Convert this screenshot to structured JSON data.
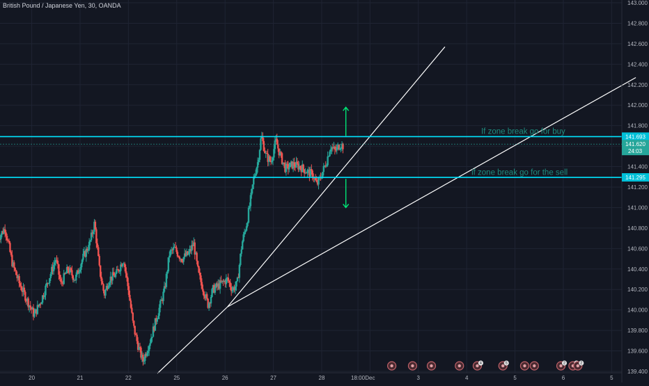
{
  "header": {
    "title": "British Pound / Japanese Yen, 30, OANDA"
  },
  "colors": {
    "background": "#131722",
    "grid": "#1f2433",
    "axis_text": "#b2b5be",
    "bull": "#26a69a",
    "bear": "#ef5350",
    "zone_line": "#00e5ff",
    "trendline": "#ffffff",
    "annotation_text": "#1e8c7e",
    "arrow": "#00e676",
    "price_tag": "#26a69a"
  },
  "chart_data": {
    "type": "candlestick",
    "symbol": "British Pound / Japanese Yen",
    "timeframe": "30",
    "source": "OANDA",
    "ylim": [
      139.4,
      143.0
    ],
    "y_ticks": [
      139.4,
      139.6,
      139.8,
      140.0,
      140.2,
      140.4,
      140.6,
      140.8,
      141.0,
      141.2,
      141.4,
      141.6,
      141.8,
      142.0,
      142.2,
      142.4,
      142.6,
      142.8,
      143.0
    ],
    "y_tick_labels": [
      "139.400",
      "139.600",
      "139.800",
      "140.000",
      "140.200",
      "140.400",
      "140.600",
      "140.800",
      "141.000",
      "141.200",
      "141.400",
      "141.600",
      "141.800",
      "142.000",
      "142.200",
      "142.400",
      "142.600",
      "142.800",
      "143.000"
    ],
    "x_ticks": [
      {
        "label": "20",
        "t": 20.0
      },
      {
        "label": "21",
        "t": 21.0
      },
      {
        "label": "22",
        "t": 22.0
      },
      {
        "label": "25",
        "t": 23.0
      },
      {
        "label": "26",
        "t": 24.0
      },
      {
        "label": "27",
        "t": 25.0
      },
      {
        "label": "28",
        "t": 26.0
      },
      {
        "label": "18:00",
        "t": 26.75
      },
      {
        "label": "Dec",
        "t": 27.0
      },
      {
        "label": "3",
        "t": 28.0
      },
      {
        "label": "4",
        "t": 29.0
      },
      {
        "label": "5",
        "t": 30.0
      },
      {
        "label": "6",
        "t": 31.0
      },
      {
        "label": "5",
        "t": 32.0
      }
    ],
    "path": [
      [
        19.3,
        140.7
      ],
      [
        19.45,
        140.8
      ],
      [
        19.6,
        140.45
      ],
      [
        19.75,
        140.25
      ],
      [
        19.9,
        140.1
      ],
      [
        20.05,
        139.95
      ],
      [
        20.2,
        140.1
      ],
      [
        20.35,
        140.3
      ],
      [
        20.5,
        140.5
      ],
      [
        20.6,
        140.25
      ],
      [
        20.75,
        140.4
      ],
      [
        20.9,
        140.3
      ],
      [
        21.05,
        140.5
      ],
      [
        21.2,
        140.65
      ],
      [
        21.3,
        140.85
      ],
      [
        21.4,
        140.4
      ],
      [
        21.5,
        140.15
      ],
      [
        21.6,
        140.3
      ],
      [
        21.75,
        140.35
      ],
      [
        21.9,
        140.5
      ],
      [
        22.0,
        140.2
      ],
      [
        22.1,
        139.85
      ],
      [
        22.2,
        139.65
      ],
      [
        22.3,
        139.5
      ],
      [
        22.45,
        139.7
      ],
      [
        22.6,
        139.95
      ],
      [
        22.75,
        140.2
      ],
      [
        22.85,
        140.55
      ],
      [
        22.95,
        140.6
      ],
      [
        23.1,
        140.5
      ],
      [
        23.25,
        140.55
      ],
      [
        23.35,
        140.65
      ],
      [
        23.45,
        140.35
      ],
      [
        23.55,
        140.2
      ],
      [
        23.65,
        140.05
      ],
      [
        23.75,
        140.2
      ],
      [
        23.9,
        140.25
      ],
      [
        24.05,
        140.3
      ],
      [
        24.15,
        140.2
      ],
      [
        24.25,
        140.25
      ],
      [
        24.35,
        140.65
      ],
      [
        24.45,
        140.85
      ],
      [
        24.52,
        141.05
      ],
      [
        24.6,
        141.3
      ],
      [
        24.68,
        141.45
      ],
      [
        24.75,
        141.7
      ],
      [
        24.85,
        141.5
      ],
      [
        24.95,
        141.45
      ],
      [
        25.05,
        141.65
      ],
      [
        25.15,
        141.5
      ],
      [
        25.25,
        141.38
      ],
      [
        25.4,
        141.42
      ],
      [
        25.55,
        141.4
      ],
      [
        25.7,
        141.35
      ],
      [
        25.82,
        141.32
      ],
      [
        25.9,
        141.22
      ],
      [
        25.98,
        141.3
      ],
      [
        26.1,
        141.45
      ],
      [
        26.18,
        141.6
      ],
      [
        26.28,
        141.55
      ],
      [
        26.38,
        141.62
      ],
      [
        26.45,
        141.6
      ]
    ],
    "horizontal_levels": [
      {
        "price": 141.693,
        "label": "141.693"
      },
      {
        "price": 141.295,
        "label": "141.295"
      }
    ],
    "current_price": {
      "price": 141.62,
      "label": "141.620",
      "countdown": "24:03"
    },
    "trendlines": [
      {
        "from": [
          22.6,
          139.38
        ],
        "to": [
          24.05,
          140.03
        ]
      },
      {
        "from": [
          24.05,
          140.03
        ],
        "to": [
          28.55,
          142.57
        ]
      },
      {
        "from": [
          24.05,
          140.03
        ],
        "to": [
          32.5,
          142.27
        ]
      }
    ],
    "annotations": [
      {
        "text": "If zone break go for buy",
        "t": 29.3,
        "price": 141.72
      },
      {
        "text": "if zone break go for the sell",
        "t": 29.1,
        "price": 141.32
      }
    ],
    "arrows": [
      {
        "t": 26.5,
        "from": 141.7,
        "to": 141.98,
        "direction": "up"
      },
      {
        "t": 26.5,
        "from": 141.28,
        "to": 141.0,
        "direction": "down"
      }
    ],
    "event_markers": [
      {
        "t": 27.45,
        "badge": ""
      },
      {
        "t": 27.88,
        "badge": ""
      },
      {
        "t": 28.27,
        "badge": ""
      },
      {
        "t": 28.85,
        "badge": ""
      },
      {
        "t": 29.22,
        "badge": "4"
      },
      {
        "t": 29.75,
        "badge": "5"
      },
      {
        "t": 30.2,
        "badge": ""
      },
      {
        "t": 30.4,
        "badge": ""
      },
      {
        "t": 30.95,
        "badge": "2"
      },
      {
        "t": 31.2,
        "badge": "2"
      },
      {
        "t": 31.3,
        "badge": "2"
      }
    ]
  }
}
